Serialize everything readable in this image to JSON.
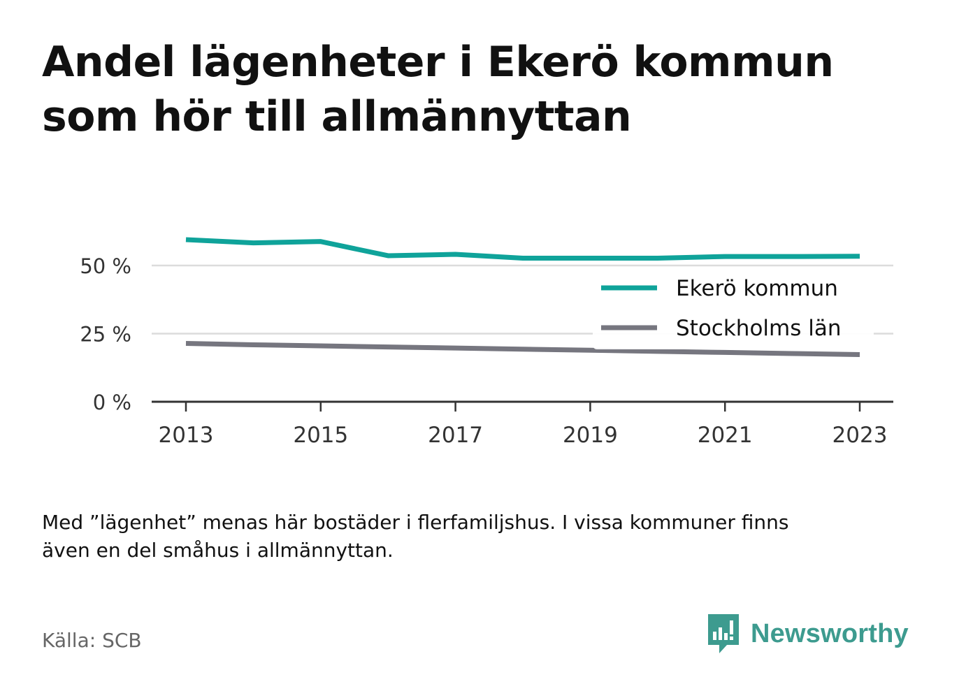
{
  "title": {
    "line1": "Andel lägenheter i Ekerö kommun",
    "line2": "som hör till allmännyttan"
  },
  "chart_data": {
    "type": "line",
    "x": [
      2013,
      2014,
      2015,
      2016,
      2017,
      2018,
      2019,
      2020,
      2021,
      2022,
      2023
    ],
    "series": [
      {
        "name": "Ekerö kommun",
        "color": "#0fa39a",
        "values": [
          59.5,
          58.3,
          58.8,
          53.6,
          54.1,
          52.7,
          52.7,
          52.7,
          53.3,
          53.3,
          53.4
        ]
      },
      {
        "name": "Stockholms län",
        "color": "#76767f",
        "values": [
          21.4,
          20.9,
          20.5,
          20.1,
          19.7,
          19.3,
          18.9,
          18.5,
          18.1,
          17.7,
          17.3
        ]
      }
    ],
    "xticks": [
      "2013",
      "2015",
      "2017",
      "2019",
      "2021",
      "2023"
    ],
    "yticks": [
      "0 %",
      "25 %",
      "50 %"
    ],
    "ytick_values": [
      0,
      25,
      50
    ],
    "ylim": [
      0,
      65
    ],
    "xlim": [
      2012.75,
      2023.25
    ],
    "grid": true,
    "legend": "right"
  },
  "note": {
    "line1": "Med ”lägenhet” menas här bostäder i flerfamiljshus. I vissa kommuner finns",
    "line2": "även en del småhus i allmännyttan."
  },
  "source": "Källa: SCB",
  "brand": {
    "name": "Newsworthy",
    "color": "#3d9b8f"
  }
}
